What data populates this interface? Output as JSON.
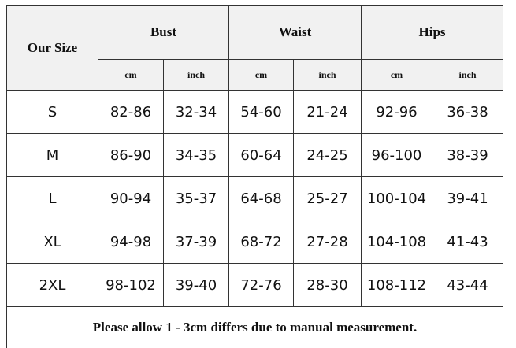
{
  "table": {
    "size_header": "Our Size",
    "groups": [
      "Bust",
      "Waist",
      "Hips"
    ],
    "units": [
      "cm",
      "inch",
      "cm",
      "inch",
      "cm",
      "inch"
    ],
    "rows": [
      {
        "size": "S",
        "values": [
          "82-86",
          "32-34",
          "54-60",
          "21-24",
          "92-96",
          "36-38"
        ]
      },
      {
        "size": "M",
        "values": [
          "86-90",
          "34-35",
          "60-64",
          "24-25",
          "96-100",
          "38-39"
        ]
      },
      {
        "size": "L",
        "values": [
          "90-94",
          "35-37",
          "64-68",
          "25-27",
          "100-104",
          "39-41"
        ]
      },
      {
        "size": "XL",
        "values": [
          "94-98",
          "37-39",
          "68-72",
          "27-28",
          "104-108",
          "41-43"
        ]
      },
      {
        "size": "2XL",
        "values": [
          "98-102",
          "39-40",
          "72-76",
          "28-30",
          "108-112",
          "43-44"
        ]
      }
    ],
    "note": "Please allow 1 - 3cm differs due to manual measurement."
  }
}
